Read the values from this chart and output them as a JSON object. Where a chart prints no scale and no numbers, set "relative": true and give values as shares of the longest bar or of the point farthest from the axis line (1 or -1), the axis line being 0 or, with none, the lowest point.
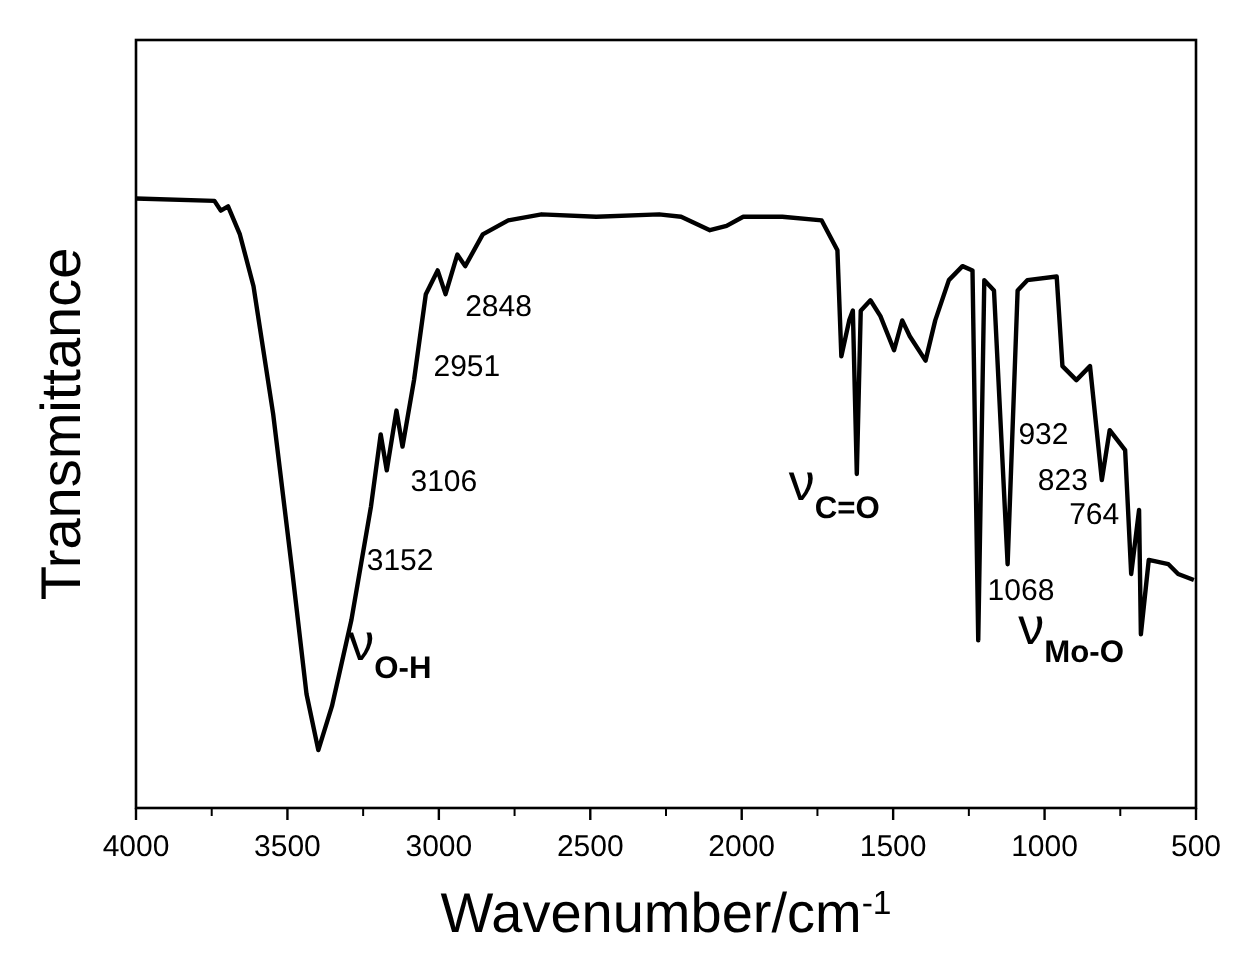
{
  "chart_data": {
    "type": "line",
    "relative": true,
    "xlabel": "Wavenumber/cm$^{-1}$",
    "ylabel": "Transmittance",
    "xlim": [
      4000,
      500
    ],
    "xticks": [
      4000,
      3500,
      3000,
      2500,
      2000,
      1500,
      1000,
      500
    ],
    "grid": false,
    "marker": "none",
    "line_style": "solid",
    "tick_labels": "x",
    "series": [
      {
        "color": "#000000",
        "x": [
          4000,
          3741,
          3720,
          3696,
          3657,
          3612,
          3547,
          3483,
          3437,
          3398,
          3353,
          3289,
          3224,
          3192,
          3172,
          3140,
          3120,
          3082,
          3043,
          3004,
          2978,
          2939,
          2913,
          2855,
          2771,
          2661,
          2480,
          2273,
          2200,
          2105,
          2050,
          1995,
          1866,
          1736,
          1684,
          1671,
          1645,
          1633,
          1620,
          1607,
          1575,
          1542,
          1497,
          1470,
          1445,
          1393,
          1361,
          1316,
          1271,
          1238,
          1219,
          1199,
          1167,
          1122,
          1089,
          1057,
          960,
          941,
          895,
          850,
          811,
          785,
          734,
          714,
          688,
          682,
          656,
          591,
          559,
          507
        ],
        "values": [
          1.0,
          0.996,
          0.98,
          0.987,
          0.941,
          0.856,
          0.646,
          0.384,
          0.187,
          0.095,
          0.167,
          0.308,
          0.495,
          0.613,
          0.554,
          0.652,
          0.593,
          0.702,
          0.843,
          0.882,
          0.843,
          0.908,
          0.889,
          0.941,
          0.964,
          0.974,
          0.97,
          0.974,
          0.97,
          0.948,
          0.955,
          0.97,
          0.97,
          0.964,
          0.915,
          0.741,
          0.8,
          0.816,
          0.548,
          0.816,
          0.833,
          0.807,
          0.751,
          0.8,
          0.774,
          0.734,
          0.8,
          0.866,
          0.889,
          0.882,
          0.275,
          0.866,
          0.849,
          0.4,
          0.849,
          0.866,
          0.872,
          0.725,
          0.702,
          0.725,
          0.538,
          0.62,
          0.587,
          0.384,
          0.489,
          0.285,
          0.407,
          0.4,
          0.384,
          0.374
        ]
      }
    ],
    "annotations": [
      {
        "text": "2848",
        "x": 2913,
        "y": 0.889
      },
      {
        "text": "2951",
        "x": 2978,
        "y": 0.843
      },
      {
        "text": "3106",
        "x": 3120,
        "y": 0.593
      },
      {
        "text": "3152",
        "x": 3172,
        "y": 0.554
      },
      {
        "text": "ν$_{O-H}$",
        "x": 3398,
        "y": 0.095
      },
      {
        "text": "ν$_{C=O}$",
        "x": 1620,
        "y": 0.548
      },
      {
        "text": "932",
        "x": 941,
        "y": 0.725
      },
      {
        "text": "823",
        "x": 811,
        "y": 0.538
      },
      {
        "text": "764",
        "x": 714,
        "y": 0.384
      },
      {
        "text": "1068",
        "x": 1122,
        "y": 0.4
      },
      {
        "text": "ν$_{Mo-O}$",
        "x": 1219,
        "y": 0.275
      }
    ]
  }
}
